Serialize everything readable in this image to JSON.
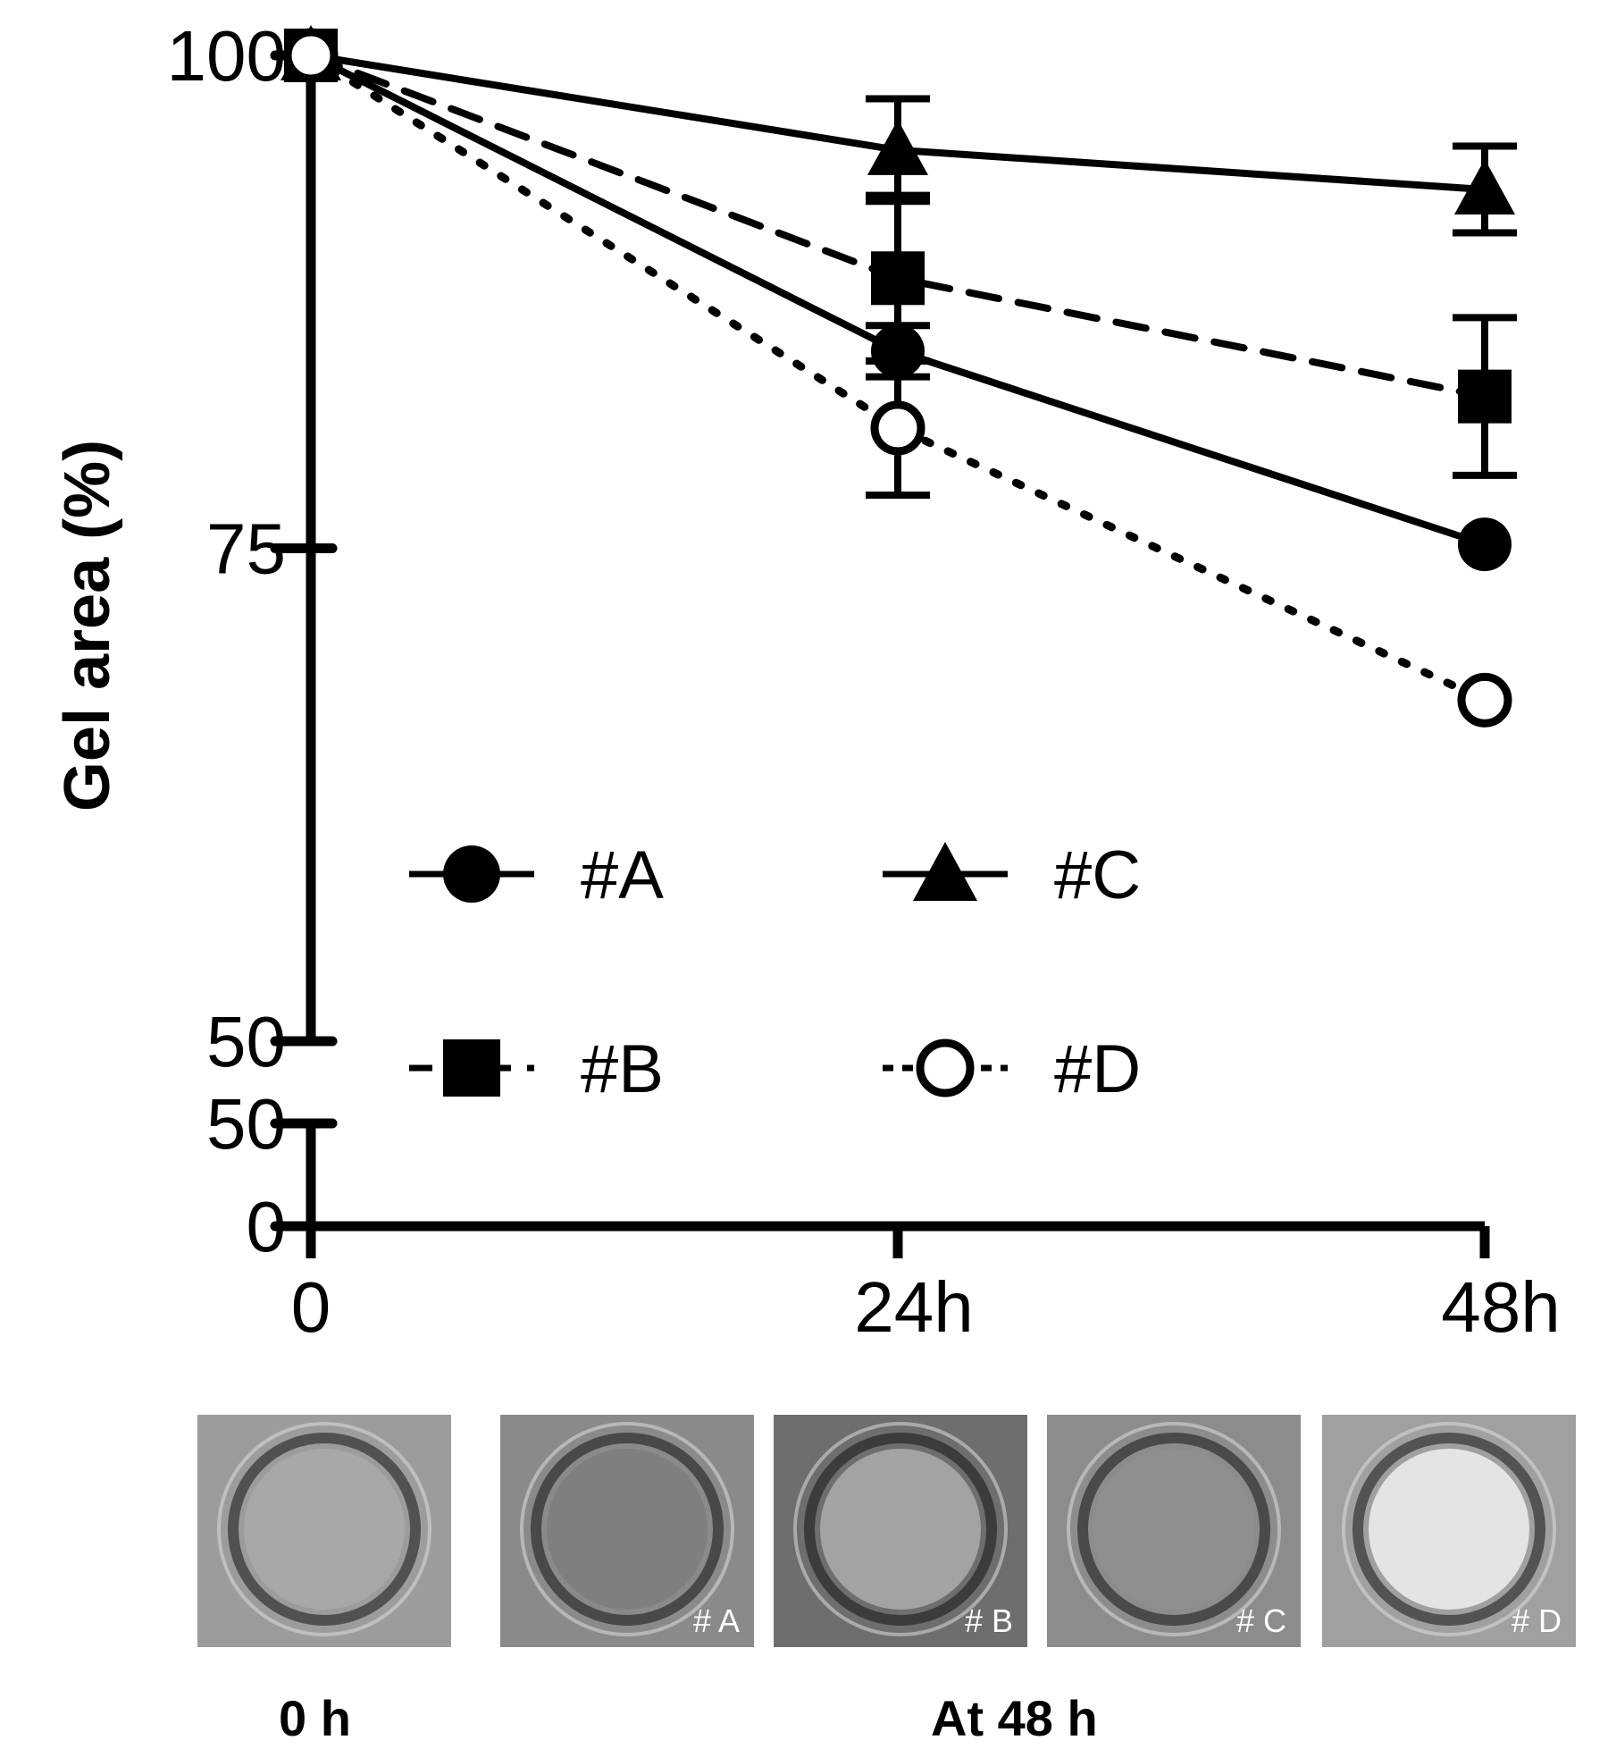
{
  "chart_data": {
    "type": "line",
    "ylabel": "Gel area (%)",
    "xlabel": "",
    "categories": [
      "0",
      "24h",
      "48h"
    ],
    "y_ticks_upper": [
      "100",
      "75",
      "50"
    ],
    "y_ticks_lower": [
      "50",
      "0"
    ],
    "ylim_upper": [
      50,
      100
    ],
    "ylim_lower": [
      0,
      50
    ],
    "axis_break": true,
    "grid": false,
    "legend_placement": "center",
    "series": [
      {
        "name": "#A",
        "marker": "filled-circle",
        "line": "solid",
        "values": [
          100,
          85,
          75.2
        ],
        "errors": [
          0,
          1.3,
          0
        ]
      },
      {
        "name": "#B",
        "marker": "filled-square",
        "line": "dashed",
        "values": [
          100,
          88.7,
          82.7
        ],
        "errors": [
          0,
          4.2,
          4.0
        ]
      },
      {
        "name": "#C",
        "marker": "filled-triangle",
        "line": "solid",
        "values": [
          100,
          95.2,
          93.2
        ],
        "errors": [
          0,
          2.6,
          2.2
        ]
      },
      {
        "name": "#D",
        "marker": "open-circle",
        "line": "dotted",
        "values": [
          100,
          81.1,
          67.3
        ],
        "errors": [
          0,
          3.4,
          0
        ]
      }
    ]
  },
  "thumbnails": [
    {
      "label": "",
      "tone": "#9c9c9c",
      "gel": "#a8a8a8"
    },
    {
      "label": "# A",
      "tone": "#8a8a8a",
      "gel": "#7f7f7f"
    },
    {
      "label": "# B",
      "tone": "#6e6e6e",
      "gel": "#a3a3a3"
    },
    {
      "label": "# C",
      "tone": "#8c8c8c",
      "gel": "#8f8f8f"
    },
    {
      "label": "# D",
      "tone": "#a0a0a0",
      "gel": "#e4e4e4"
    }
  ],
  "captions": {
    "left": "0 h",
    "right": "At 48 h"
  }
}
